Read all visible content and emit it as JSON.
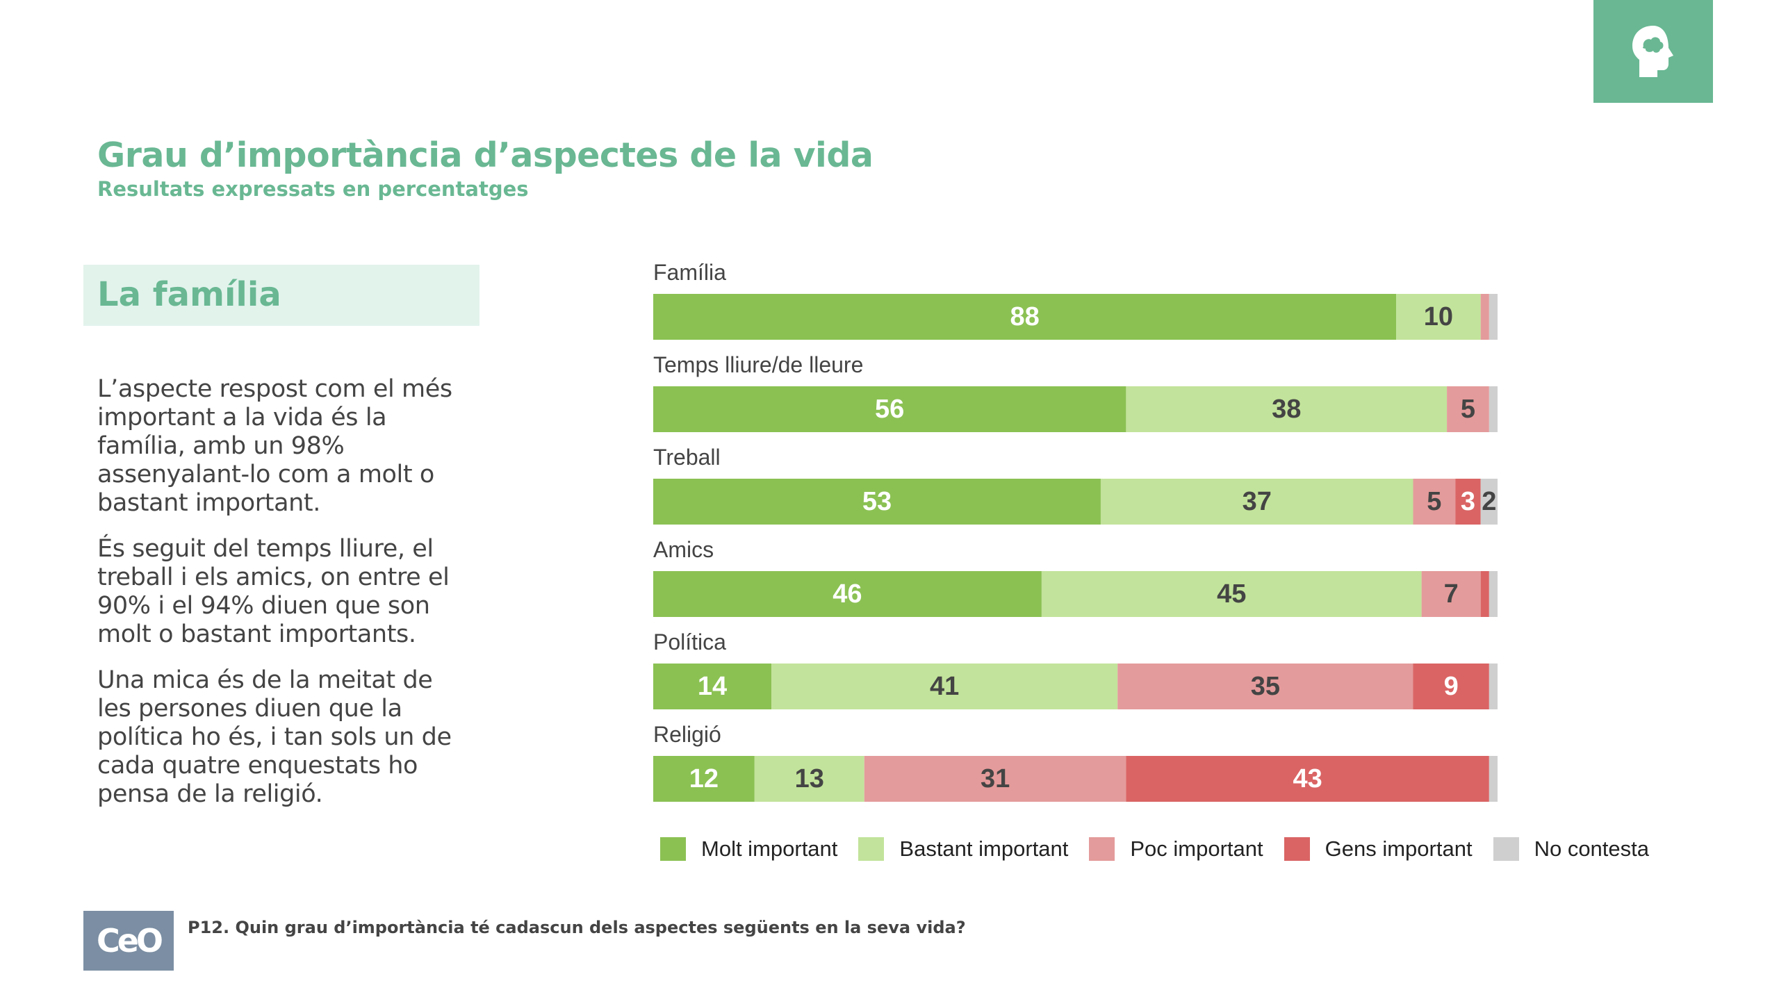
{
  "header": {
    "title": "Grau d’importància d’aspectes de la vida",
    "subtitle": "Resultats expressats en percentatges",
    "badge_icon": "head-profile-icon"
  },
  "section": {
    "title": "La família",
    "paragraphs": [
      "L’aspecte respost com el més important a la vida és la família, amb un 98% assenyalant-lo com a molt o bastant important.",
      "És seguit del temps lliure, el treball i els amics, on entre el 90% i el 94% diuen que son molt o bastant importants.",
      "Una mica és de la meitat de les persones diuen que la política ho és, i tan sols un de cada quatre enquestats ho pensa de la religió."
    ]
  },
  "chart_data": {
    "type": "bar",
    "orientation": "horizontal",
    "stacked": true,
    "title": "",
    "xlabel": "",
    "ylabel": "",
    "xlim": [
      0,
      100
    ],
    "grid": false,
    "legend_position": "bottom",
    "categories": [
      "Família",
      "Temps lliure/de lleure",
      "Treball",
      "Amics",
      "Política",
      "Religió"
    ],
    "series": [
      {
        "name": "Molt important",
        "color": "#8bc153",
        "values": [
          88,
          56,
          53,
          46,
          14,
          12
        ]
      },
      {
        "name": "Bastant important",
        "color": "#c2e39b",
        "values": [
          10,
          38,
          37,
          45,
          41,
          13
        ]
      },
      {
        "name": "Poc important",
        "color": "#e49b9b",
        "values": [
          1,
          5,
          5,
          7,
          35,
          31
        ]
      },
      {
        "name": "Gens important",
        "color": "#da6464",
        "values": [
          0,
          0,
          3,
          1,
          9,
          43
        ]
      },
      {
        "name": "No contesta",
        "color": "#cfcfcf",
        "values": [
          1,
          1,
          2,
          1,
          1,
          1
        ]
      }
    ],
    "data_labels": [
      [
        "88",
        "10",
        "",
        "",
        ""
      ],
      [
        "56",
        "38",
        "5",
        "",
        ""
      ],
      [
        "53",
        "37",
        "5",
        "3",
        "2"
      ],
      [
        "46",
        "45",
        "7",
        "",
        ""
      ],
      [
        "14",
        "41",
        "35",
        "9",
        ""
      ],
      [
        "12",
        "13",
        "31",
        "43",
        ""
      ]
    ]
  },
  "footer": {
    "logo_text": "CeO",
    "question": "P12. Quin grau d’importància té cadascun dels aspectes següents en la seva vida?"
  }
}
